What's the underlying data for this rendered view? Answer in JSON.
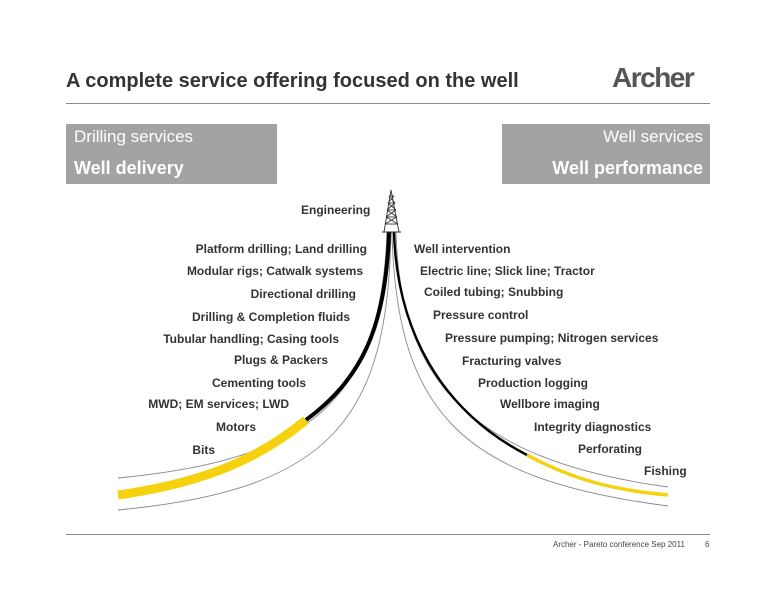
{
  "header": {
    "title": "A complete service offering focused on the well",
    "logo_text": "Archer"
  },
  "drilling_box": {
    "subtitle": "Drilling services",
    "heading": "Well delivery"
  },
  "well_box": {
    "subtitle": "Well services",
    "heading": "Well performance"
  },
  "center_label": "Engineering",
  "drilling_services": [
    "Platform drilling; Land drilling",
    "Modular rigs; Catwalk systems",
    "Directional drilling",
    "Drilling & Completion fluids",
    "Tubular handling; Casing tools",
    "Plugs & Packers",
    "Cementing tools",
    "MWD; EM services; LWD",
    "Motors",
    "Bits"
  ],
  "well_services": [
    "Well intervention",
    "Electric line; Slick line; Tractor",
    "Coiled tubing; Snubbing",
    "Pressure control",
    "Pressure pumping; Nitrogen services",
    "Fracturing valves",
    "Production logging",
    "Wellbore imaging",
    "Integrity diagnostics",
    "Perforating",
    "Fishing"
  ],
  "footer": {
    "text": "Archer - Pareto conference Sep 2011",
    "page_number": "6"
  },
  "colors": {
    "box_fill": "#a3a3a3",
    "accent_yellow": "#f5d10f",
    "wellbore_black": "#000000",
    "outline_grey": "#8a8a8a"
  }
}
